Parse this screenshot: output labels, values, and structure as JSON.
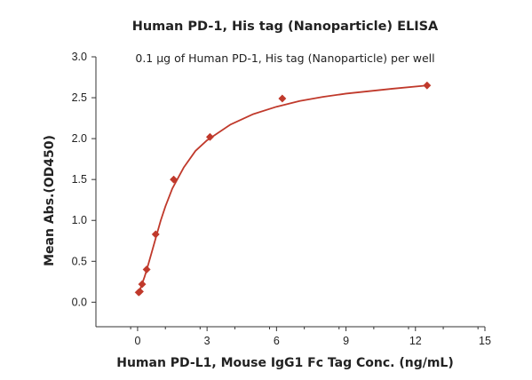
{
  "chart_data": {
    "type": "scatter",
    "title": "Human PD-1, His tag (Nanoparticle) ELISA",
    "subtitle": "0.1 µg of Human PD-1, His tag (Nanoparticle) per well",
    "xlabel": "Human PD-L1, Mouse IgG1 Fc Tag Conc. (ng/mL)",
    "ylabel": "Mean Abs.(OD450)",
    "xlim": [
      -1.8,
      15
    ],
    "ylim": [
      -0.3,
      3.0
    ],
    "xticks": [
      0,
      3,
      6,
      9,
      12,
      15
    ],
    "yticks": [
      0.0,
      0.5,
      1.0,
      1.5,
      2.0,
      2.5,
      3.0
    ],
    "ytick_labels": [
      "0.0",
      "0.5",
      "1.0",
      "1.5",
      "2.0",
      "2.5",
      "3.0"
    ],
    "grid": false,
    "marker_color": "#c0392b",
    "line_color": "#c0392b",
    "series": [
      {
        "x": [
          0.049,
          0.098,
          0.195,
          0.39,
          0.78,
          1.56,
          3.125,
          6.25,
          12.5
        ],
        "y": [
          0.12,
          0.13,
          0.22,
          0.4,
          0.83,
          1.5,
          2.02,
          2.49,
          2.65
        ]
      }
    ],
    "fit_curve": {
      "x": [
        0.0,
        0.1,
        0.2,
        0.3,
        0.4,
        0.5,
        0.6,
        0.8,
        1.0,
        1.2,
        1.5,
        2.0,
        2.5,
        3.0,
        4.0,
        5.0,
        6.0,
        7.0,
        8.0,
        9.0,
        10.0,
        11.0,
        12.5
      ],
      "y": [
        0.1,
        0.15,
        0.23,
        0.31,
        0.4,
        0.5,
        0.6,
        0.8,
        1.0,
        1.17,
        1.39,
        1.65,
        1.85,
        1.98,
        2.17,
        2.3,
        2.39,
        2.46,
        2.51,
        2.55,
        2.58,
        2.61,
        2.65
      ]
    }
  }
}
